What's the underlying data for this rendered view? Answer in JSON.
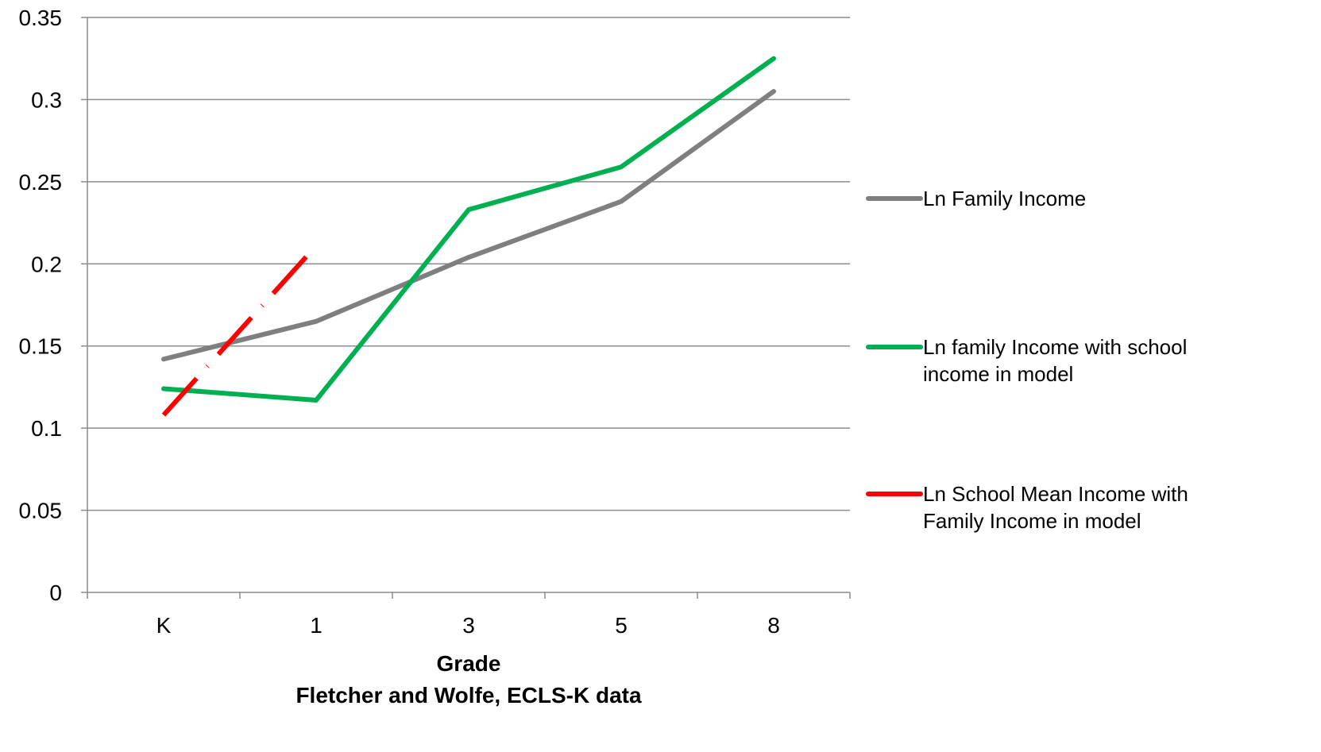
{
  "chart_data": {
    "type": "line",
    "categories": [
      "K",
      "1",
      "3",
      "5",
      "8"
    ],
    "xlabel": "Grade",
    "caption": "Fletcher and Wolfe, ECLS-K data",
    "ylim": [
      0,
      0.35
    ],
    "yticks": [
      "0",
      "0.05",
      "0.1",
      "0.15",
      "0.2",
      "0.25",
      "0.3",
      "0.35"
    ],
    "ytick_values": [
      0,
      0.05,
      0.1,
      0.15,
      0.2,
      0.25,
      0.3,
      0.35
    ],
    "grid": true,
    "legend_position": "right",
    "series": [
      {
        "name": "Ln Family Income",
        "color": "#7f7f7f",
        "dash": "solid",
        "values": [
          0.142,
          0.165,
          0.204,
          0.238,
          0.305
        ]
      },
      {
        "name": "Ln family Income with school income in model",
        "color": "#00b050",
        "dash": "solid",
        "values": [
          0.124,
          0.117,
          0.233,
          0.259,
          0.325
        ]
      },
      {
        "name": "Ln School Mean Income with Family Income in model",
        "color": "#ff0000",
        "dash": "dash-dot",
        "values": [
          0.108,
          0.211,
          null,
          null,
          null
        ]
      }
    ]
  }
}
